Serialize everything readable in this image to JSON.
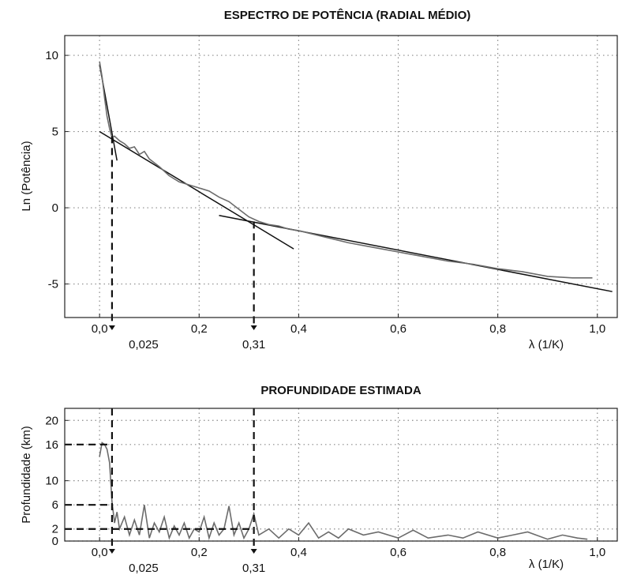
{
  "chart_data": [
    {
      "type": "line",
      "title": "ESPECTRO DE POTÊNCIA (RADIAL MÉDIO)",
      "xlabel": "λ (1/K)",
      "ylabel": "Ln (Potência)",
      "xlim": [
        -0.07,
        1.04
      ],
      "ylim": [
        -7.2,
        11.3
      ],
      "xticks": [
        0.0,
        0.2,
        0.4,
        0.6,
        0.8,
        1.0
      ],
      "xtick_labels": [
        "0,0",
        "0,2",
        "0,4",
        "0,6",
        "0,8",
        "1,0"
      ],
      "yticks": [
        -5,
        0,
        5,
        10
      ],
      "ytick_labels": [
        "-5",
        "0",
        "5",
        "10"
      ],
      "grid": true,
      "series": [
        {
          "x": [
            0.0,
            0.005,
            0.01,
            0.015,
            0.02,
            0.025,
            0.03,
            0.04,
            0.05,
            0.06,
            0.07,
            0.08,
            0.09,
            0.1,
            0.12,
            0.14,
            0.16,
            0.18,
            0.2,
            0.22,
            0.24,
            0.26,
            0.28,
            0.3,
            0.32,
            0.34,
            0.36,
            0.38,
            0.4,
            0.45,
            0.5,
            0.55,
            0.6,
            0.65,
            0.7,
            0.75,
            0.8,
            0.85,
            0.9,
            0.95,
            0.99
          ],
          "y": [
            9.6,
            8.6,
            7.2,
            6.0,
            5.2,
            4.6,
            4.7,
            4.4,
            4.2,
            3.9,
            4.0,
            3.5,
            3.7,
            3.2,
            2.7,
            2.1,
            1.7,
            1.5,
            1.3,
            1.1,
            0.7,
            0.4,
            -0.1,
            -0.6,
            -0.9,
            -1.1,
            -1.2,
            -1.4,
            -1.5,
            -1.9,
            -2.3,
            -2.6,
            -2.9,
            -3.2,
            -3.5,
            -3.7,
            -4.0,
            -4.2,
            -4.5,
            -4.6,
            -4.6
          ]
        }
      ],
      "fit_lines": [
        {
          "x": [
            0.0,
            0.035
          ],
          "y": [
            9.4,
            3.1
          ]
        },
        {
          "x": [
            0.0,
            0.39
          ],
          "y": [
            5.0,
            -2.7
          ]
        },
        {
          "x": [
            0.24,
            1.03
          ],
          "y": [
            -0.5,
            -5.5
          ]
        }
      ],
      "dashed_markers": [
        {
          "x": 0.025,
          "from_y": 4.7,
          "label": "0,025"
        },
        {
          "x": 0.31,
          "from_y": -0.9,
          "label": "0,31"
        }
      ],
      "xlabel_position": "bottom-right"
    },
    {
      "type": "line",
      "title": "PROFUNDIDADE ESTIMADA",
      "xlabel": "λ (1/K)",
      "ylabel": "Profundidade (km)",
      "xlim": [
        -0.07,
        1.04
      ],
      "ylim": [
        0,
        22
      ],
      "xticks": [
        0.0,
        0.2,
        0.4,
        0.6,
        0.8,
        1.0
      ],
      "xtick_labels": [
        "0,0",
        "0,2",
        "0,4",
        "0,6",
        "0,8",
        "1,0"
      ],
      "yticks": [
        0,
        2,
        6,
        10,
        16,
        20
      ],
      "ytick_labels": [
        "0",
        "2",
        "6",
        "10",
        "16",
        "20"
      ],
      "grid": true,
      "series": [
        {
          "x": [
            0.0,
            0.005,
            0.01,
            0.015,
            0.02,
            0.025,
            0.03,
            0.035,
            0.04,
            0.05,
            0.06,
            0.07,
            0.08,
            0.09,
            0.1,
            0.11,
            0.12,
            0.13,
            0.14,
            0.15,
            0.16,
            0.17,
            0.18,
            0.19,
            0.2,
            0.21,
            0.22,
            0.23,
            0.24,
            0.25,
            0.26,
            0.27,
            0.28,
            0.29,
            0.3,
            0.31,
            0.32,
            0.34,
            0.36,
            0.38,
            0.4,
            0.42,
            0.44,
            0.46,
            0.48,
            0.5,
            0.53,
            0.56,
            0.6,
            0.63,
            0.66,
            0.7,
            0.73,
            0.76,
            0.8,
            0.83,
            0.86,
            0.9,
            0.93,
            0.96,
            0.98
          ],
          "y": [
            14.0,
            16.3,
            16.0,
            15.2,
            13.0,
            6.5,
            3.0,
            4.8,
            2.0,
            4.0,
            1.0,
            3.5,
            1.0,
            6.0,
            0.5,
            3.0,
            1.5,
            4.0,
            0.5,
            2.5,
            1.0,
            3.0,
            0.5,
            2.0,
            1.5,
            4.0,
            0.5,
            3.0,
            1.0,
            2.0,
            5.8,
            1.0,
            3.0,
            0.5,
            2.0,
            4.5,
            1.0,
            2.0,
            0.5,
            2.0,
            1.0,
            3.0,
            0.5,
            1.5,
            0.5,
            2.0,
            1.0,
            1.5,
            0.5,
            1.8,
            0.5,
            1.0,
            0.5,
            1.5,
            0.5,
            1.0,
            1.5,
            0.3,
            1.0,
            0.5,
            0.3
          ]
        }
      ],
      "depth_levels": [
        16,
        6,
        2
      ],
      "dashed_markers": [
        {
          "x": 0.025,
          "label": "0,025"
        },
        {
          "x": 0.31,
          "label": "0,31"
        }
      ],
      "xlabel_position": "bottom-right"
    }
  ]
}
